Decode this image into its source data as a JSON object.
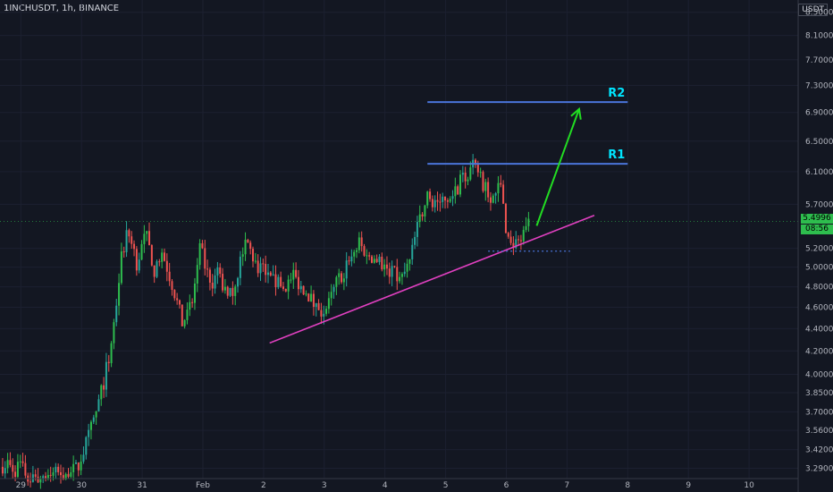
{
  "header": {
    "symbol_line": "1INCHUSDT, 1h, BINANCE",
    "currency": "USDT"
  },
  "colors": {
    "background": "#131722",
    "up_candle": "#26a69a",
    "up_candle_bright": "#2ebd4e",
    "down_candle": "#ef5350",
    "resistance": "#4a74d9",
    "trendline": "#e040c0",
    "arrow": "#22dd22",
    "label": "#00e5ff",
    "axis_text": "#b2b5be"
  },
  "price_tag": {
    "price": "5.4996",
    "countdown": "08:56"
  },
  "chart_data": {
    "type": "candlestick",
    "title": "1INCHUSDT, 1h, BINANCE",
    "xlabel": "",
    "ylabel": "",
    "y_scale": "log",
    "ylim": [
      3.22,
      8.72
    ],
    "x_tick_labels": [
      "29",
      "30",
      "31",
      "Feb",
      "2",
      "3",
      "4",
      "5",
      "6",
      "7",
      "8",
      "9",
      "10"
    ],
    "x_tick_days": [
      -3,
      -2,
      -1,
      0,
      1,
      2,
      3,
      4,
      5,
      6,
      7,
      8,
      9
    ],
    "y_tick_labels": [
      "8.5000",
      "8.1000",
      "7.7000",
      "7.3000",
      "6.9000",
      "6.5000",
      "6.1000",
      "5.7000",
      "5.2000",
      "5.0000",
      "4.8000",
      "4.6000",
      "4.4000",
      "4.2000",
      "4.0000",
      "3.8500",
      "3.7000",
      "3.5600",
      "3.4200",
      "3.2900"
    ],
    "y_ticks": [
      8.5,
      8.1,
      7.7,
      7.3,
      6.9,
      6.5,
      6.1,
      5.7,
      5.2,
      5.0,
      4.8,
      4.6,
      4.4,
      4.2,
      4.0,
      3.85,
      3.7,
      3.56,
      3.42,
      3.29
    ],
    "price_path": [
      [
        -3.3,
        3.3
      ],
      [
        -3.2,
        3.33
      ],
      [
        -3.1,
        3.28
      ],
      [
        -2.95,
        3.29
      ],
      [
        -2.8,
        3.22
      ],
      [
        -2.1,
        3.27
      ],
      [
        -2.0,
        3.33
      ],
      [
        -1.85,
        3.5
      ],
      [
        -1.7,
        3.72
      ],
      [
        -1.6,
        3.92
      ],
      [
        -1.5,
        4.15
      ],
      [
        -1.4,
        4.55
      ],
      [
        -1.3,
        5.1
      ],
      [
        -1.2,
        5.4
      ],
      [
        -1.05,
        5.05
      ],
      [
        -0.9,
        5.35
      ],
      [
        -0.75,
        4.95
      ],
      [
        -0.6,
        5.1
      ],
      [
        -0.45,
        4.8
      ],
      [
        -0.3,
        4.45
      ],
      [
        -0.15,
        4.6
      ],
      [
        0.0,
        5.2
      ],
      [
        0.1,
        4.95
      ],
      [
        0.2,
        4.85
      ],
      [
        0.3,
        4.95
      ],
      [
        0.45,
        4.65
      ],
      [
        0.6,
        4.9
      ],
      [
        0.75,
        5.3
      ],
      [
        0.9,
        5.05
      ],
      [
        1.05,
        4.95
      ],
      [
        1.2,
        4.85
      ],
      [
        1.35,
        4.8
      ],
      [
        1.55,
        4.9
      ],
      [
        1.75,
        4.75
      ],
      [
        1.95,
        4.55
      ],
      [
        2.1,
        4.6
      ],
      [
        2.25,
        4.85
      ],
      [
        2.45,
        5.05
      ],
      [
        2.6,
        5.25
      ],
      [
        2.75,
        5.15
      ],
      [
        2.95,
        5.05
      ],
      [
        3.15,
        4.95
      ],
      [
        3.3,
        4.85
      ],
      [
        3.45,
        5.05
      ],
      [
        3.6,
        5.5
      ],
      [
        3.75,
        5.8
      ],
      [
        3.9,
        5.7
      ],
      [
        4.05,
        5.8
      ],
      [
        4.2,
        5.85
      ],
      [
        4.35,
        6.05
      ],
      [
        4.5,
        6.15
      ],
      [
        4.65,
        5.95
      ],
      [
        4.8,
        5.8
      ],
      [
        4.95,
        5.9
      ],
      [
        5.05,
        5.35
      ],
      [
        5.15,
        5.25
      ],
      [
        5.3,
        5.3
      ],
      [
        5.4,
        5.45
      ]
    ],
    "levels": [
      {
        "name": "R2",
        "value": 7.05,
        "x_start": 3.7,
        "x_end": 7.0
      },
      {
        "name": "R1",
        "value": 6.2,
        "x_start": 3.7,
        "x_end": 7.0
      }
    ],
    "trendline": {
      "from": [
        1.1,
        4.27
      ],
      "to": [
        6.45,
        5.57
      ]
    },
    "projection_arrow": {
      "from": [
        5.5,
        5.45
      ],
      "to": [
        6.2,
        6.95
      ]
    },
    "dotted_support": {
      "value": 5.17,
      "x_start": 4.7,
      "x_end": 6.05
    }
  }
}
